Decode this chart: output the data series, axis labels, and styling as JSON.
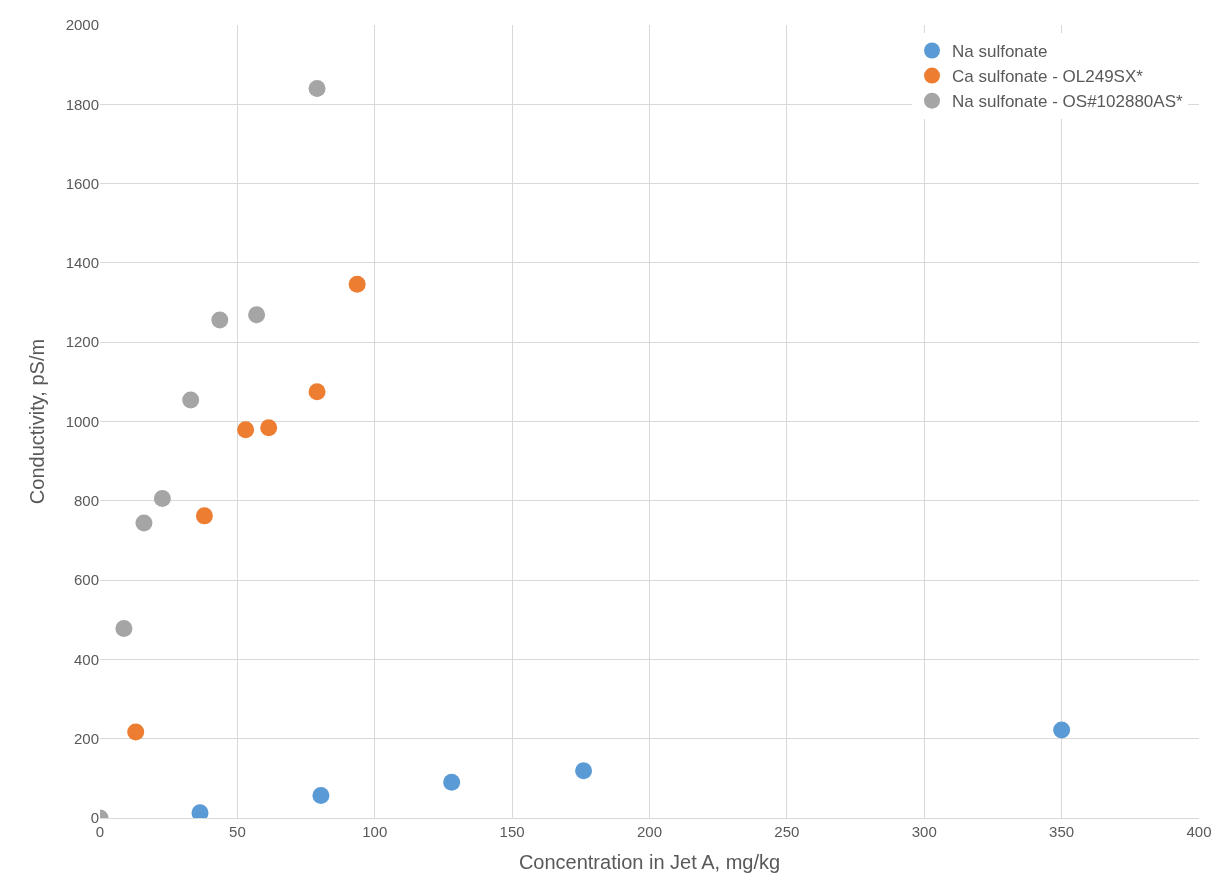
{
  "chart_data": {
    "type": "scatter",
    "xlabel": "Concentration in Jet A, mg/kg",
    "ylabel": "Conductivity, pS/m",
    "xlim": [
      0,
      400
    ],
    "xticks": [
      0,
      50,
      100,
      150,
      200,
      250,
      300,
      350,
      400
    ],
    "ylim": [
      0,
      2000
    ],
    "yticks": [
      0,
      200,
      400,
      600,
      800,
      1000,
      1200,
      1400,
      1600,
      1800,
      2000
    ],
    "grid": true,
    "legend": "top right",
    "marker": "circle",
    "series": [
      {
        "name": "Na sulfonate",
        "color": "#5b9bd5",
        "x": [
          36.4,
          80.4,
          128,
          176,
          350
        ],
        "values": [
          13,
          57,
          90,
          119,
          222
        ]
      },
      {
        "name": "Ca sulfonate - OL249SX*",
        "color": "#ed7d31",
        "x": [
          13,
          38,
          53,
          61.4,
          79,
          93.6
        ],
        "values": [
          217,
          762,
          979,
          984,
          1075,
          1346
        ]
      },
      {
        "name": "Na sulfonate - OS#102880AS*",
        "color": "#a5a5a5",
        "x": [
          0,
          8.7,
          16,
          22.7,
          33,
          43.6,
          57,
          79
        ],
        "values": [
          0,
          478,
          744,
          806,
          1054,
          1256,
          1269,
          1840
        ]
      }
    ]
  }
}
